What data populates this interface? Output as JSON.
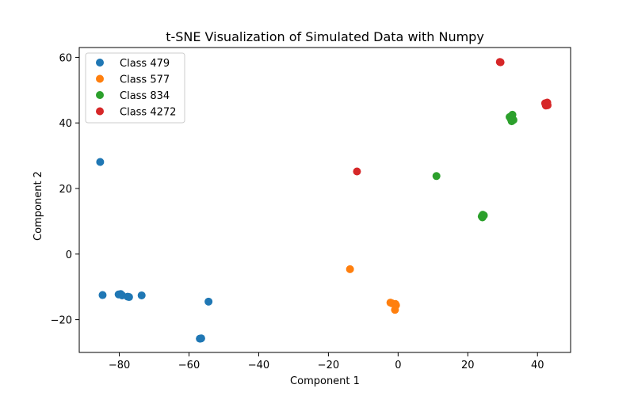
{
  "chart_data": {
    "type": "scatter",
    "title": "t-SNE Visualization of Simulated Data with Numpy",
    "xlabel": "Component 1",
    "ylabel": "Component 2",
    "xlim": [
      -91.5,
      49.5
    ],
    "ylim": [
      -30,
      63
    ],
    "xticks": [
      -80,
      -60,
      -40,
      -20,
      0,
      20,
      40
    ],
    "yticks": [
      -20,
      0,
      20,
      40,
      60
    ],
    "xtick_labels": [
      "−80",
      "−60",
      "−40",
      "−20",
      "0",
      "20",
      "40"
    ],
    "ytick_labels": [
      "−20",
      "0",
      "20",
      "40",
      "60"
    ],
    "grid": false,
    "legend_position": "top-left",
    "series": [
      {
        "name": "Class 479",
        "color": "#1f77b4",
        "points": [
          [
            -85.5,
            28.1
          ],
          [
            -84.8,
            -12.5
          ],
          [
            -80.2,
            -12.3
          ],
          [
            -79.6,
            -12.2
          ],
          [
            -79.2,
            -12.6
          ],
          [
            -77.6,
            -13.0
          ],
          [
            -77.2,
            -13.1
          ],
          [
            -73.6,
            -12.6
          ],
          [
            -56.9,
            -25.8
          ],
          [
            -56.5,
            -25.7
          ],
          [
            -54.4,
            -14.5
          ]
        ]
      },
      {
        "name": "Class 577",
        "color": "#ff7f0e",
        "points": [
          [
            -13.8,
            -4.6
          ],
          [
            -2.2,
            -14.8
          ],
          [
            -1.8,
            -15.0
          ],
          [
            -0.8,
            -15.2
          ],
          [
            -0.6,
            -15.6
          ],
          [
            -0.9,
            -17.0
          ]
        ]
      },
      {
        "name": "Class 834",
        "color": "#2ca02c",
        "points": [
          [
            11.0,
            23.8
          ],
          [
            24.2,
            11.2
          ],
          [
            24.6,
            11.8
          ],
          [
            24.3,
            12.0
          ],
          [
            24.0,
            11.5
          ],
          [
            32.0,
            41.8
          ],
          [
            32.8,
            42.5
          ],
          [
            33.1,
            40.9
          ],
          [
            32.6,
            40.5
          ],
          [
            32.4,
            41.1
          ]
        ]
      },
      {
        "name": "Class 4272",
        "color": "#d62728",
        "points": [
          [
            -11.8,
            25.2
          ],
          [
            29.2,
            58.6
          ],
          [
            29.4,
            58.5
          ],
          [
            42.2,
            46.0
          ],
          [
            42.6,
            45.8
          ],
          [
            42.9,
            45.4
          ],
          [
            42.4,
            45.3
          ],
          [
            42.8,
            46.2
          ]
        ]
      }
    ]
  }
}
